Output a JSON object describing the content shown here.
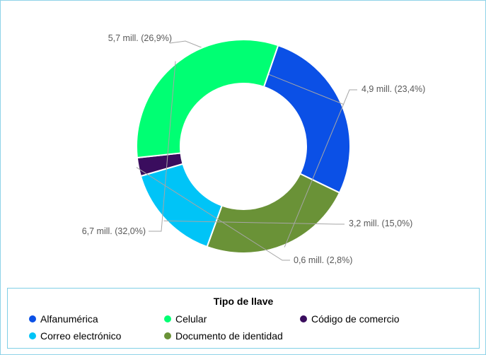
{
  "chart_data": {
    "type": "pie",
    "donut": true,
    "legend_title": "Tipo de llave",
    "legend_position": "bottom",
    "slices": [
      {
        "name": "Alfanumérica",
        "value": 5.7,
        "percent": 26.9,
        "label": "5,7 mill. (26,9%)",
        "color": "#0b50e6"
      },
      {
        "name": "Documento de identidad",
        "value": 4.9,
        "percent": 23.4,
        "label": "4,9 mill. (23,4%)",
        "color": "#6a9237"
      },
      {
        "name": "Correo electrónico",
        "value": 3.2,
        "percent": 15.0,
        "label": "3,2 mill. (15,0%)",
        "color": "#00c4f7"
      },
      {
        "name": "Código de comercio",
        "value": 0.6,
        "percent": 2.8,
        "label": "0,6 mill. (2,8%)",
        "color": "#3a0d5e"
      },
      {
        "name": "Celular",
        "value": 6.7,
        "percent": 32.0,
        "label": "6,7 mill. (32,0%)",
        "color": "#00ff73"
      }
    ],
    "legend_items": [
      {
        "name": "Alfanumérica",
        "color": "#0b50e6"
      },
      {
        "name": "Celular",
        "color": "#00ff73"
      },
      {
        "name": "Código de comercio",
        "color": "#3a0d5e"
      },
      {
        "name": "Correo electrónico",
        "color": "#00c4f7"
      },
      {
        "name": "Documento de identidad",
        "color": "#6a9237"
      }
    ]
  }
}
